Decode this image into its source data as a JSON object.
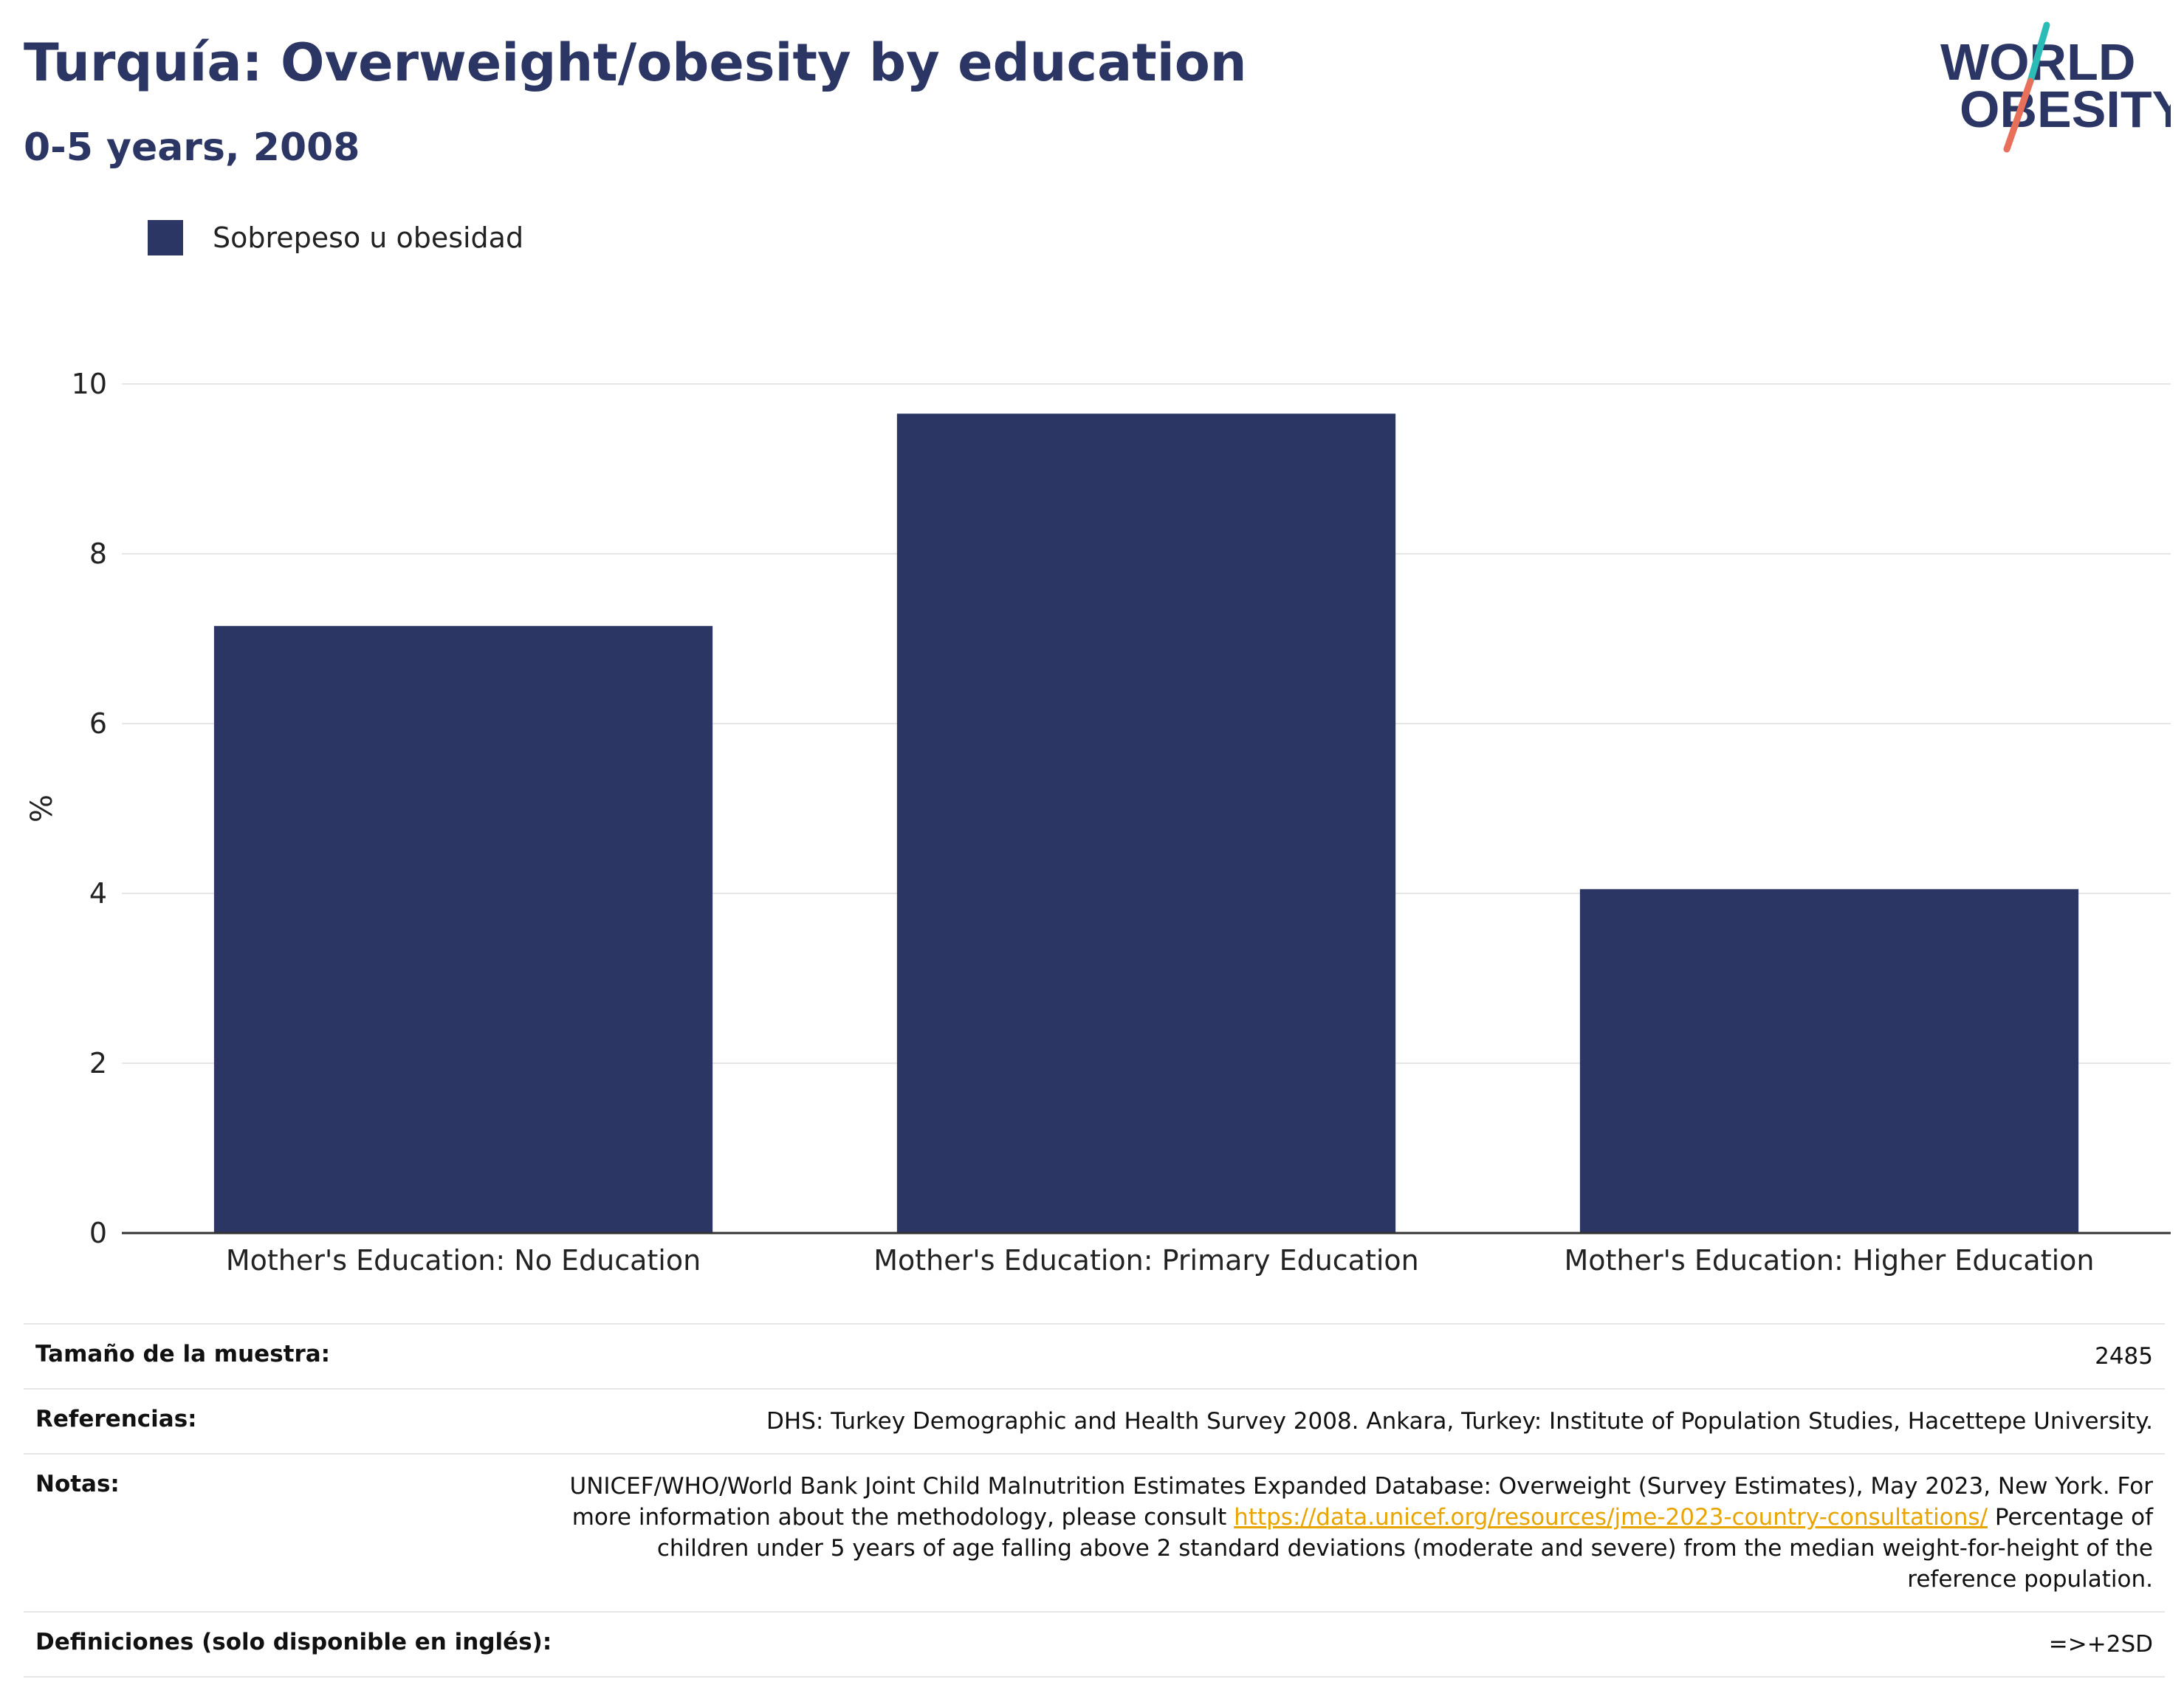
{
  "header": {
    "title": "Turquía: Overweight/obesity by education",
    "subtitle": "0-5 years, 2008"
  },
  "logo": {
    "line1": "WORLD",
    "line2": "OBESITY",
    "colors": {
      "text": "#2b3664",
      "slash_top": "#2cbcb8",
      "slash_bottom": "#e8705a"
    }
  },
  "legend": {
    "label": "Sobrepeso u obesidad"
  },
  "colors": {
    "bar": "#2b3664",
    "grid": "#e6e6e6",
    "axis": "#333333",
    "link": "#e8a400"
  },
  "chart_data": {
    "type": "bar",
    "categories": [
      "Mother's Education: No Education",
      "Mother's Education: Primary Education",
      "Mother's Education: Higher Education"
    ],
    "series": [
      {
        "name": "Sobrepeso u obesidad",
        "values": [
          7.15,
          9.65,
          4.05
        ]
      }
    ],
    "ylabel": "%",
    "xlabel": "",
    "ylim": [
      0,
      10
    ],
    "yticks": [
      0,
      2,
      4,
      6,
      8,
      10
    ],
    "grid": true,
    "legend_position": "top-left"
  },
  "info": {
    "sample_size": {
      "label": "Tamaño de la muestra:",
      "value": "2485"
    },
    "references": {
      "label": "Referencias:",
      "value": "DHS: Turkey Demographic and Health Survey 2008. Ankara, Turkey: Institute of Population Studies, Hacettepe University."
    },
    "notes": {
      "label": "Notas:",
      "text_before_link": "UNICEF/WHO/World Bank Joint Child Malnutrition Estimates Expanded Database: Overweight (Survey Estimates), May 2023, New York. For more information about the methodology, please consult ",
      "link": "https://data.unicef.org/resources/jme-2023-country-consultations/",
      "text_after_link": " Percentage of children under 5 years of age falling above 2 standard deviations (moderate and severe) from the median weight-for-height of the reference population."
    },
    "definitions": {
      "label": "Definiciones (solo disponible en inglés):",
      "value": "=>+2SD"
    }
  }
}
